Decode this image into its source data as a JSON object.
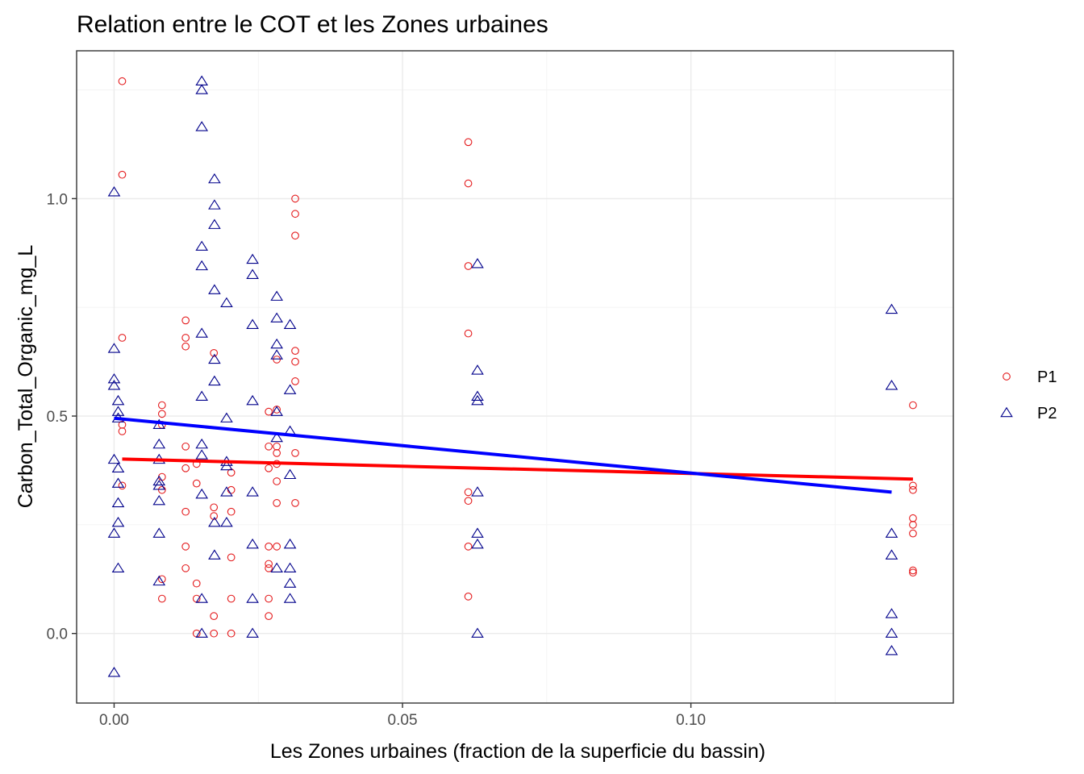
{
  "chart_data": {
    "type": "scatter",
    "title": "Relation entre le COT et les Zones urbaines",
    "xlabel": "Les Zones urbaines (fraction de la superficie du bassin)",
    "ylabel": "Carbon_Total_Organic_mg_L",
    "xlim": [
      -0.0065,
      0.1455
    ],
    "ylim": [
      -0.16,
      1.34
    ],
    "x_ticks": [
      0.0,
      0.05,
      0.1
    ],
    "x_tick_labels": [
      "0.00",
      "0.05",
      "0.10"
    ],
    "y_ticks": [
      0.0,
      0.5,
      1.0
    ],
    "y_tick_labels": [
      "0.0",
      "0.5",
      "1.0"
    ],
    "grid": true,
    "legend_position": "right",
    "series": [
      {
        "name": "P1",
        "color": "#e41a1c",
        "shape": "circle",
        "points": [
          [
            0.0014,
            1.27
          ],
          [
            0.0014,
            1.055
          ],
          [
            0.0014,
            0.68
          ],
          [
            0.0014,
            0.48
          ],
          [
            0.0014,
            0.465
          ],
          [
            0.0014,
            0.34
          ],
          [
            0.0083,
            0.525
          ],
          [
            0.0083,
            0.505
          ],
          [
            0.0083,
            0.48
          ],
          [
            0.0083,
            0.36
          ],
          [
            0.0083,
            0.33
          ],
          [
            0.0083,
            0.125
          ],
          [
            0.0083,
            0.08
          ],
          [
            0.0124,
            0.72
          ],
          [
            0.0124,
            0.68
          ],
          [
            0.0124,
            0.66
          ],
          [
            0.0124,
            0.43
          ],
          [
            0.0124,
            0.38
          ],
          [
            0.0124,
            0.28
          ],
          [
            0.0124,
            0.2
          ],
          [
            0.0124,
            0.15
          ],
          [
            0.0143,
            0.345
          ],
          [
            0.0143,
            0.39
          ],
          [
            0.0143,
            0.115
          ],
          [
            0.0143,
            0.08
          ],
          [
            0.0143,
            0.0
          ],
          [
            0.0173,
            0.645
          ],
          [
            0.0173,
            0.29
          ],
          [
            0.0173,
            0.27
          ],
          [
            0.0173,
            0.04
          ],
          [
            0.0173,
            0.0
          ],
          [
            0.0203,
            0.37
          ],
          [
            0.0203,
            0.33
          ],
          [
            0.0203,
            0.28
          ],
          [
            0.0203,
            0.175
          ],
          [
            0.0203,
            0.08
          ],
          [
            0.0203,
            0.0
          ],
          [
            0.0268,
            0.51
          ],
          [
            0.0268,
            0.43
          ],
          [
            0.0268,
            0.38
          ],
          [
            0.0268,
            0.2
          ],
          [
            0.0268,
            0.16
          ],
          [
            0.0268,
            0.15
          ],
          [
            0.0268,
            0.08
          ],
          [
            0.0268,
            0.04
          ],
          [
            0.0282,
            0.63
          ],
          [
            0.0282,
            0.515
          ],
          [
            0.0282,
            0.43
          ],
          [
            0.0282,
            0.415
          ],
          [
            0.0282,
            0.39
          ],
          [
            0.0282,
            0.35
          ],
          [
            0.0282,
            0.3
          ],
          [
            0.0282,
            0.2
          ],
          [
            0.0314,
            1.0
          ],
          [
            0.0314,
            0.965
          ],
          [
            0.0314,
            0.915
          ],
          [
            0.0314,
            0.65
          ],
          [
            0.0314,
            0.625
          ],
          [
            0.0314,
            0.58
          ],
          [
            0.0314,
            0.415
          ],
          [
            0.0314,
            0.3
          ],
          [
            0.0614,
            1.13
          ],
          [
            0.0614,
            1.035
          ],
          [
            0.0614,
            0.845
          ],
          [
            0.0614,
            0.69
          ],
          [
            0.0614,
            0.325
          ],
          [
            0.0614,
            0.305
          ],
          [
            0.0614,
            0.2
          ],
          [
            0.0614,
            0.085
          ],
          [
            0.1385,
            0.525
          ],
          [
            0.1385,
            0.34
          ],
          [
            0.1385,
            0.33
          ],
          [
            0.1385,
            0.265
          ],
          [
            0.1385,
            0.25
          ],
          [
            0.1385,
            0.23
          ],
          [
            0.1385,
            0.145
          ],
          [
            0.1385,
            0.14
          ]
        ],
        "trend": [
          [
            0.0014,
            0.401
          ],
          [
            0.1385,
            0.355
          ]
        ]
      },
      {
        "name": "P2",
        "color": "#00008b",
        "shape": "triangle",
        "points": [
          [
            0.0,
            1.015
          ],
          [
            0.0,
            0.655
          ],
          [
            0.0,
            0.585
          ],
          [
            0.0,
            0.57
          ],
          [
            0.0,
            0.4
          ],
          [
            0.0,
            0.23
          ],
          [
            0.0,
            -0.09
          ],
          [
            0.0007,
            0.535
          ],
          [
            0.0007,
            0.51
          ],
          [
            0.0007,
            0.495
          ],
          [
            0.0007,
            0.38
          ],
          [
            0.0007,
            0.345
          ],
          [
            0.0007,
            0.3
          ],
          [
            0.0007,
            0.255
          ],
          [
            0.0007,
            0.15
          ],
          [
            0.0078,
            0.48
          ],
          [
            0.0078,
            0.435
          ],
          [
            0.0078,
            0.4
          ],
          [
            0.0078,
            0.35
          ],
          [
            0.0078,
            0.34
          ],
          [
            0.0078,
            0.305
          ],
          [
            0.0078,
            0.23
          ],
          [
            0.0078,
            0.12
          ],
          [
            0.0152,
            1.27
          ],
          [
            0.0152,
            1.25
          ],
          [
            0.0152,
            1.165
          ],
          [
            0.0152,
            0.89
          ],
          [
            0.0152,
            0.845
          ],
          [
            0.0152,
            0.69
          ],
          [
            0.0152,
            0.545
          ],
          [
            0.0152,
            0.435
          ],
          [
            0.0152,
            0.41
          ],
          [
            0.0152,
            0.32
          ],
          [
            0.0152,
            0.08
          ],
          [
            0.0152,
            0.0
          ],
          [
            0.0174,
            1.045
          ],
          [
            0.0174,
            0.985
          ],
          [
            0.0174,
            0.94
          ],
          [
            0.0174,
            0.79
          ],
          [
            0.0174,
            0.63
          ],
          [
            0.0174,
            0.58
          ],
          [
            0.0174,
            0.255
          ],
          [
            0.0174,
            0.18
          ],
          [
            0.0195,
            0.76
          ],
          [
            0.0195,
            0.495
          ],
          [
            0.0195,
            0.395
          ],
          [
            0.0195,
            0.385
          ],
          [
            0.0195,
            0.325
          ],
          [
            0.0195,
            0.255
          ],
          [
            0.024,
            0.86
          ],
          [
            0.024,
            0.825
          ],
          [
            0.024,
            0.71
          ],
          [
            0.024,
            0.535
          ],
          [
            0.024,
            0.325
          ],
          [
            0.024,
            0.205
          ],
          [
            0.024,
            0.08
          ],
          [
            0.024,
            0.0
          ],
          [
            0.0282,
            0.775
          ],
          [
            0.0282,
            0.725
          ],
          [
            0.0282,
            0.665
          ],
          [
            0.0282,
            0.64
          ],
          [
            0.0282,
            0.51
          ],
          [
            0.0282,
            0.45
          ],
          [
            0.0282,
            0.15
          ],
          [
            0.0305,
            0.71
          ],
          [
            0.0305,
            0.56
          ],
          [
            0.0305,
            0.465
          ],
          [
            0.0305,
            0.365
          ],
          [
            0.0305,
            0.205
          ],
          [
            0.0305,
            0.15
          ],
          [
            0.0305,
            0.115
          ],
          [
            0.0305,
            0.08
          ],
          [
            0.063,
            0.85
          ],
          [
            0.063,
            0.605
          ],
          [
            0.063,
            0.545
          ],
          [
            0.063,
            0.535
          ],
          [
            0.063,
            0.325
          ],
          [
            0.063,
            0.23
          ],
          [
            0.063,
            0.205
          ],
          [
            0.063,
            0.0
          ],
          [
            0.1348,
            0.745
          ],
          [
            0.1348,
            0.57
          ],
          [
            0.1348,
            0.23
          ],
          [
            0.1348,
            0.18
          ],
          [
            0.1348,
            0.045
          ],
          [
            0.1348,
            0.0
          ],
          [
            0.1348,
            -0.04
          ]
        ],
        "trend": [
          [
            0.0,
            0.495
          ],
          [
            0.1348,
            0.325
          ]
        ]
      }
    ]
  }
}
